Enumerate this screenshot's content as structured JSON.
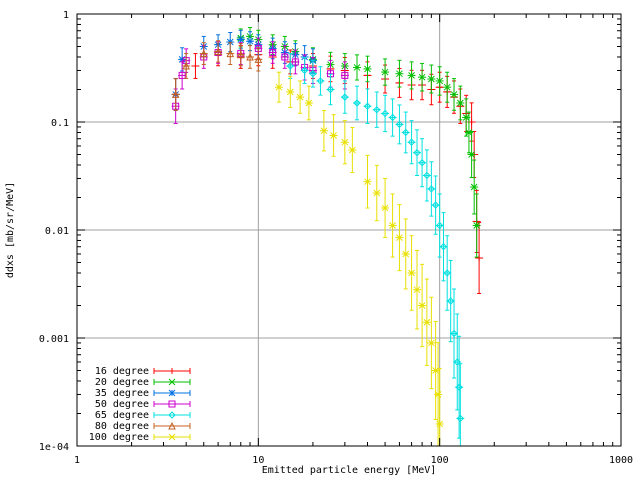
{
  "chart_data": {
    "type": "scatter",
    "xlabel": "Emitted particle energy [MeV]",
    "ylabel": "ddxs [mb/sr/MeV]",
    "xscale": "log",
    "yscale": "log",
    "xlim": [
      1,
      1000
    ],
    "ylim": [
      0.0001,
      1
    ],
    "x_ticks": [
      1,
      10,
      100,
      1000
    ],
    "x_tick_labels": [
      "1",
      "10",
      "100",
      "1000"
    ],
    "y_ticks": [
      0.0001,
      0.001,
      0.01,
      0.1,
      1
    ],
    "y_tick_labels": [
      "1e-04",
      "0.001",
      "0.01",
      "0.1",
      "1"
    ],
    "grid": true,
    "legend_position": "bottom-left",
    "series": [
      {
        "name": "16 degree",
        "color": "#ff0000",
        "marker": "plus",
        "points": [
          [
            3.5,
            0.18
          ],
          [
            4.5,
            0.33
          ],
          [
            6,
            0.42
          ],
          [
            8,
            0.4
          ],
          [
            10,
            0.42
          ],
          [
            12,
            0.4
          ],
          [
            15,
            0.36
          ],
          [
            20,
            0.33
          ],
          [
            25,
            0.31
          ],
          [
            30,
            0.3
          ],
          [
            40,
            0.27
          ],
          [
            50,
            0.25
          ],
          [
            60,
            0.23
          ],
          [
            70,
            0.22
          ],
          [
            80,
            0.22
          ],
          [
            90,
            0.2
          ],
          [
            100,
            0.21
          ],
          [
            110,
            0.19
          ],
          [
            120,
            0.17
          ],
          [
            130,
            0.14
          ],
          [
            140,
            0.12
          ],
          [
            150,
            0.1
          ],
          [
            155,
            0.05
          ],
          [
            160,
            0.012
          ],
          [
            165,
            0.0055
          ]
        ]
      },
      {
        "name": "20 degree",
        "color": "#00c000",
        "marker": "cross",
        "points": [
          [
            8,
            0.6
          ],
          [
            9,
            0.62
          ],
          [
            10,
            0.58
          ],
          [
            12,
            0.52
          ],
          [
            14,
            0.5
          ],
          [
            16,
            0.45
          ],
          [
            20,
            0.38
          ],
          [
            25,
            0.34
          ],
          [
            30,
            0.33
          ],
          [
            35,
            0.32
          ],
          [
            40,
            0.31
          ],
          [
            50,
            0.29
          ],
          [
            60,
            0.28
          ],
          [
            70,
            0.27
          ],
          [
            80,
            0.26
          ],
          [
            90,
            0.25
          ],
          [
            100,
            0.24
          ],
          [
            110,
            0.21
          ],
          [
            120,
            0.18
          ],
          [
            130,
            0.15
          ],
          [
            140,
            0.11
          ],
          [
            145,
            0.08
          ],
          [
            150,
            0.05
          ],
          [
            155,
            0.025
          ],
          [
            160,
            0.011
          ]
        ]
      },
      {
        "name": "35 degree",
        "color": "#0070e0",
        "marker": "star",
        "points": [
          [
            3.5,
            0.18
          ],
          [
            3.8,
            0.38
          ],
          [
            5,
            0.5
          ],
          [
            6,
            0.52
          ],
          [
            7,
            0.55
          ],
          [
            8,
            0.58
          ],
          [
            9,
            0.56
          ],
          [
            10,
            0.52
          ],
          [
            12,
            0.48
          ],
          [
            14,
            0.44
          ],
          [
            16,
            0.42
          ],
          [
            18,
            0.4
          ],
          [
            20,
            0.37
          ]
        ]
      },
      {
        "name": "50 degree",
        "color": "#cc00cc",
        "marker": "square",
        "points": [
          [
            3.5,
            0.14
          ],
          [
            3.8,
            0.27
          ],
          [
            4,
            0.37
          ],
          [
            5,
            0.4
          ],
          [
            6,
            0.44
          ],
          [
            8,
            0.43
          ],
          [
            10,
            0.48
          ],
          [
            12,
            0.44
          ],
          [
            14,
            0.4
          ],
          [
            16,
            0.36
          ],
          [
            18,
            0.32
          ],
          [
            20,
            0.3
          ],
          [
            25,
            0.28
          ],
          [
            30,
            0.27
          ]
        ]
      },
      {
        "name": "65 degree",
        "color": "#00e0e0",
        "marker": "diamond",
        "points": [
          [
            15,
            0.33
          ],
          [
            18,
            0.3
          ],
          [
            20,
            0.28
          ],
          [
            22,
            0.24
          ],
          [
            25,
            0.2
          ],
          [
            30,
            0.17
          ],
          [
            35,
            0.15
          ],
          [
            40,
            0.14
          ],
          [
            45,
            0.13
          ],
          [
            50,
            0.12
          ],
          [
            55,
            0.11
          ],
          [
            60,
            0.095
          ],
          [
            65,
            0.08
          ],
          [
            70,
            0.065
          ],
          [
            75,
            0.052
          ],
          [
            80,
            0.042
          ],
          [
            85,
            0.032
          ],
          [
            90,
            0.024
          ],
          [
            95,
            0.017
          ],
          [
            100,
            0.011
          ],
          [
            105,
            0.007
          ],
          [
            110,
            0.004
          ],
          [
            115,
            0.0022
          ],
          [
            120,
            0.0011
          ],
          [
            125,
            0.0006
          ],
          [
            128,
            0.00035
          ],
          [
            130,
            0.00018
          ]
        ]
      },
      {
        "name": "80 degree",
        "color": "#c06020",
        "marker": "triangle",
        "points": [
          [
            3.5,
            0.18
          ],
          [
            4,
            0.33
          ],
          [
            5,
            0.43
          ],
          [
            6,
            0.45
          ],
          [
            7,
            0.43
          ],
          [
            8,
            0.42
          ],
          [
            9,
            0.4
          ],
          [
            10,
            0.38
          ]
        ]
      },
      {
        "name": "100 degree",
        "color": "#e8e000",
        "marker": "cross",
        "points": [
          [
            13,
            0.21
          ],
          [
            15,
            0.19
          ],
          [
            17,
            0.17
          ],
          [
            19,
            0.15
          ],
          [
            23,
            0.083
          ],
          [
            26,
            0.075
          ],
          [
            30,
            0.065
          ],
          [
            33,
            0.055
          ],
          [
            40,
            0.028
          ],
          [
            45,
            0.022
          ],
          [
            50,
            0.016
          ],
          [
            55,
            0.011
          ],
          [
            60,
            0.0085
          ],
          [
            65,
            0.006
          ],
          [
            70,
            0.004
          ],
          [
            75,
            0.0028
          ],
          [
            80,
            0.002
          ],
          [
            85,
            0.0014
          ],
          [
            90,
            0.0009
          ],
          [
            95,
            0.0005
          ],
          [
            98,
            0.0003
          ],
          [
            100,
            0.00016
          ]
        ]
      }
    ]
  }
}
